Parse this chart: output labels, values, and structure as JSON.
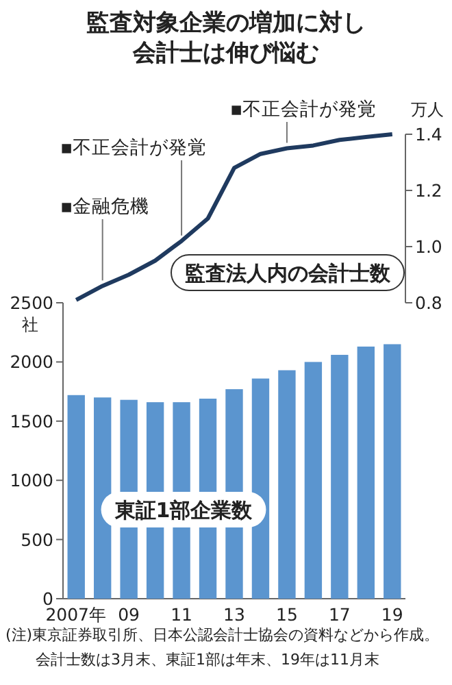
{
  "chart_data": [
    {
      "type": "line",
      "title": "監査対象企業の増加に対し会計士は伸び悩む",
      "ylabel": "万人",
      "series": [
        {
          "name": "監査法人内の会計士数",
          "color": "#1f3a5f",
          "values": [
            0.81,
            0.86,
            0.9,
            0.95,
            1.02,
            1.1,
            1.28,
            1.33,
            1.35,
            1.36,
            1.38,
            1.39,
            1.4
          ]
        }
      ],
      "ylim": [
        0.8,
        1.4
      ],
      "yticks": [
        {
          "value": 0.8,
          "label": "0.8"
        },
        {
          "value": 1,
          "label": "1.0"
        },
        {
          "value": 1.2,
          "label": "1.2"
        },
        {
          "value": 1.4,
          "label": "1.4"
        }
      ],
      "tick_labels": "y",
      "marker": "none",
      "annotations": [
        "▪金融危機",
        "▪不正会計が発覚",
        "▪不正会計が発覚"
      ]
    },
    {
      "type": "bar",
      "ylabel": "社",
      "categories": [
        "2007年",
        null,
        "09",
        null,
        "11",
        null,
        "13",
        null,
        "15",
        null,
        "17",
        null,
        "19"
      ],
      "series": [
        {
          "name": "東証1部企業数",
          "color": "#5b95cf",
          "values": [
            1720,
            1700,
            1680,
            1660,
            1660,
            1690,
            1770,
            1860,
            1930,
            2000,
            2060,
            2130,
            2150
          ]
        }
      ],
      "ylim": [
        0,
        2500
      ],
      "yticks": [
        0,
        500,
        1000,
        1500,
        2000,
        2500
      ],
      "annotations": [
        "(注)東京証券取引所、日本公認会計士協会の資料などから作成。会計士数は3月末、東証1部は年末、19年は11月末"
      ]
    }
  ]
}
